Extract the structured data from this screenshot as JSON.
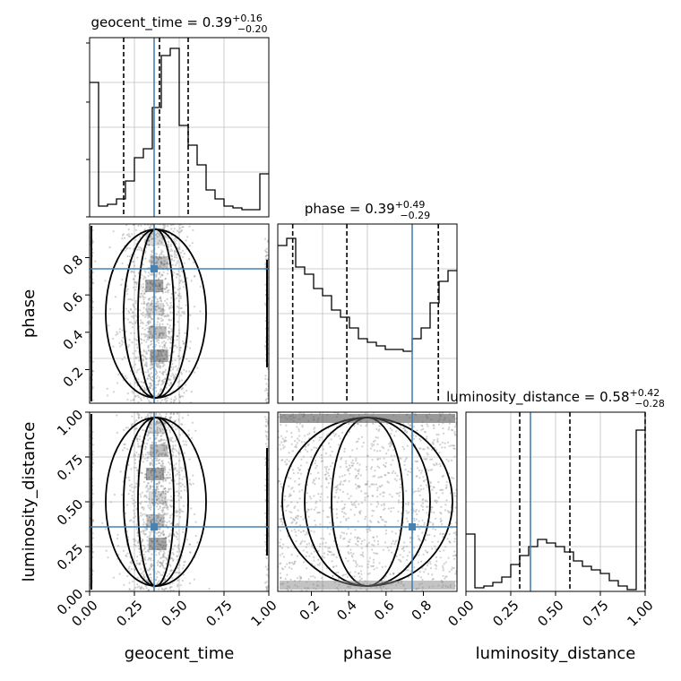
{
  "chart_data": {
    "type": "corner",
    "parameters": [
      "geocent_time",
      "phase",
      "luminosity_distance"
    ],
    "axis_labels": {
      "x": [
        "geocent_time",
        "phase",
        "luminosity_distance"
      ],
      "y": [
        "phase",
        "luminosity_distance"
      ]
    },
    "ranges": [
      [
        0.0,
        1.0
      ],
      [
        0.02,
        0.98
      ],
      [
        0.0,
        1.0
      ]
    ],
    "ticks": {
      "geocent_time": [
        "0.00",
        "0.25",
        "0.50",
        "0.75",
        "1.00"
      ],
      "phase": [
        "0.2",
        "0.4",
        "0.6",
        "0.8"
      ],
      "luminosity_distance": [
        "0.00",
        "0.25",
        "0.50",
        "0.75",
        "1.00"
      ]
    },
    "truths": [
      0.36,
      0.74,
      0.36
    ],
    "titles": [
      {
        "name": "geocent_time",
        "median": "0.39",
        "plus": "+0.16",
        "minus": "−0.20"
      },
      {
        "name": "phase",
        "median": "0.39",
        "plus": "+0.49",
        "minus": "−0.29"
      },
      {
        "name": "luminosity_distance",
        "median": "0.58",
        "plus": "+0.42",
        "minus": "−0.28"
      }
    ],
    "quantiles": [
      [
        0.19,
        0.39,
        0.55
      ],
      [
        0.1,
        0.39,
        0.88
      ],
      [
        0.3,
        0.58,
        1.0
      ]
    ],
    "histograms": [
      {
        "bins": 20,
        "values": [
          0.75,
          0.06,
          0.07,
          0.1,
          0.2,
          0.33,
          0.38,
          0.61,
          0.9,
          0.94,
          0.51,
          0.4,
          0.29,
          0.15,
          0.1,
          0.06,
          0.05,
          0.04,
          0.04,
          0.24
        ]
      },
      {
        "bins": 20,
        "values": [
          0.88,
          0.92,
          0.76,
          0.72,
          0.64,
          0.6,
          0.52,
          0.48,
          0.42,
          0.36,
          0.34,
          0.32,
          0.3,
          0.3,
          0.29,
          0.36,
          0.42,
          0.56,
          0.68,
          0.74
        ]
      },
      {
        "bins": 20,
        "values": [
          0.32,
          0.02,
          0.03,
          0.05,
          0.08,
          0.15,
          0.2,
          0.25,
          0.29,
          0.27,
          0.25,
          0.22,
          0.17,
          0.14,
          0.12,
          0.1,
          0.06,
          0.03,
          0.01,
          0.9
        ]
      }
    ],
    "colors": {
      "truth": "#4682b4",
      "hist": "#000000",
      "grid": "#bfbfbf",
      "points": "#999999"
    }
  }
}
